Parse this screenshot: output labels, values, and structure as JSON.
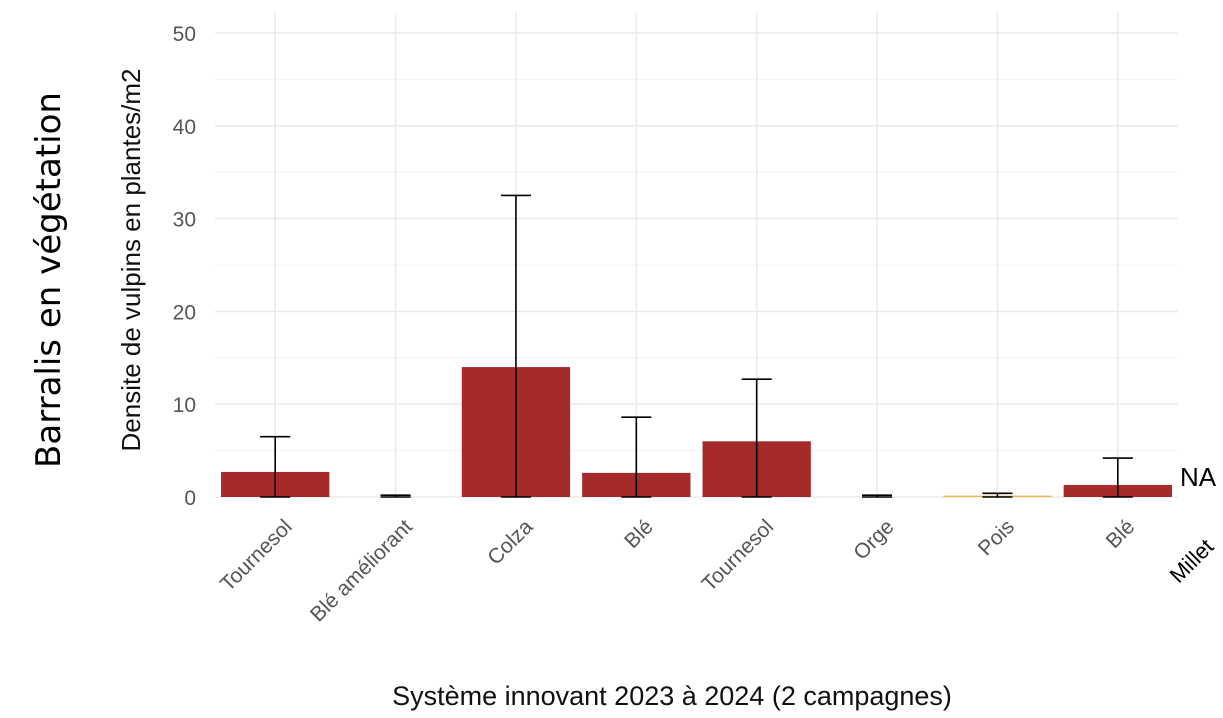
{
  "side_title": "Barralis en végétation",
  "annotations": {
    "na_label": "NA",
    "extra_category": "Millet"
  },
  "chart_data": {
    "type": "bar",
    "xlabel": "Système innovant 2023 à 2024 (2 campagnes)",
    "ylabel": "Densite de vulpins en plantes/m2",
    "ylim": [
      0,
      50
    ],
    "yticks": [
      0,
      10,
      20,
      30,
      40,
      50
    ],
    "grid": true,
    "categories": [
      "Tournesol",
      "Blé améliorant",
      "Colza",
      "Blé",
      "Tournesol",
      "Orge",
      "Pois",
      "Blé"
    ],
    "values": [
      2.7,
      0,
      14.0,
      2.6,
      6.0,
      0,
      0.15,
      1.3
    ],
    "error_upper": [
      6.5,
      0.2,
      32.5,
      8.6,
      12.7,
      0.2,
      0.4,
      4.2
    ],
    "error_lower": [
      0,
      0,
      0,
      0,
      0,
      0,
      0,
      0
    ],
    "colors": [
      "#a52a2a",
      "#a52a2a",
      "#a52a2a",
      "#a52a2a",
      "#a52a2a",
      "#a52a2a",
      "#e8b84a",
      "#a52a2a"
    ]
  }
}
